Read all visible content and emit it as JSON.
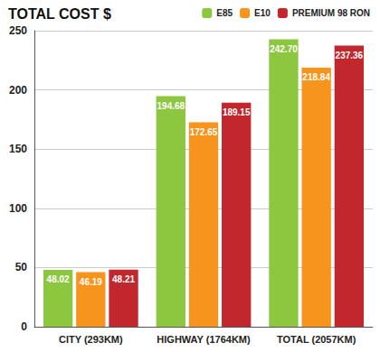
{
  "chart_data": {
    "type": "bar",
    "title": "TOTAL COST $",
    "categories": [
      "CITY (293KM)",
      "HIGHWAY (1764KM)",
      "TOTAL (2057KM)"
    ],
    "series": [
      {
        "name": "E85",
        "color": "#8dc63f",
        "values": [
          48.02,
          194.68,
          242.7
        ],
        "value_labels": [
          "48.02",
          "194.68",
          "242.70"
        ]
      },
      {
        "name": "E10",
        "color": "#f7941d",
        "values": [
          46.19,
          172.65,
          218.84
        ],
        "value_labels": [
          "46.19",
          "172.65",
          "218.84"
        ]
      },
      {
        "name": "PREMIUM 98 RON",
        "color": "#c1272d",
        "values": [
          48.21,
          189.15,
          237.36
        ],
        "value_labels": [
          "48.21",
          "189.15",
          "237.36"
        ]
      }
    ],
    "ylim": [
      0,
      250
    ],
    "yticks": [
      0,
      50,
      100,
      150,
      200,
      250
    ],
    "grid": true,
    "legend": "top-right",
    "data_labels": true
  }
}
